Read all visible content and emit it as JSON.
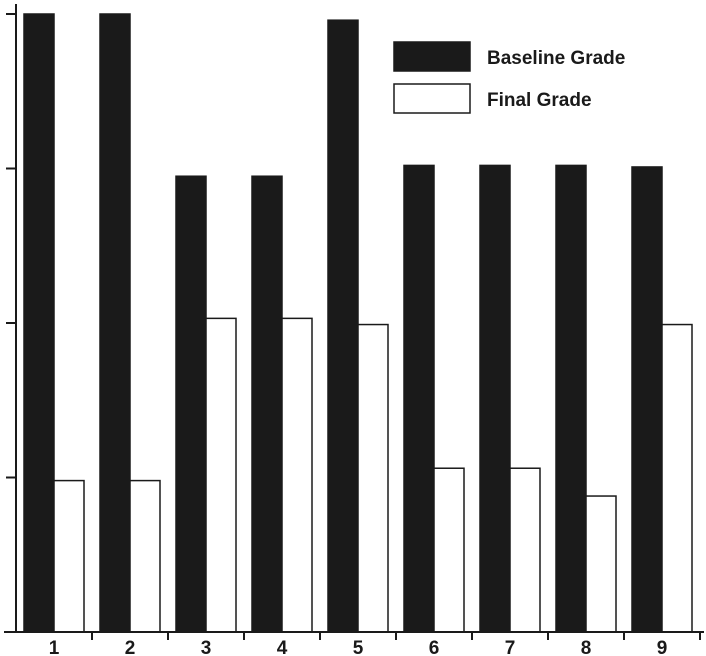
{
  "chart_data": {
    "type": "bar",
    "categories": [
      "1",
      "2",
      "3",
      "4",
      "5",
      "6",
      "7",
      "8",
      "9"
    ],
    "series": [
      {
        "name": "Baseline Grade",
        "values": [
          4.0,
          4.0,
          2.95,
          2.95,
          3.96,
          3.02,
          3.02,
          3.02,
          3.01
        ],
        "color": "#1a1a1a"
      },
      {
        "name": "Final Grade",
        "values": [
          0.98,
          0.98,
          2.03,
          2.03,
          1.99,
          1.06,
          1.06,
          0.88,
          1.99
        ],
        "color": "#ffffff"
      }
    ],
    "title": "",
    "xlabel": "",
    "ylabel": "",
    "ylim": [
      0,
      4.1
    ],
    "y_ticks": [
      1,
      2,
      3,
      4
    ],
    "y_tick_labels_shown": false,
    "grid": false,
    "legend_position": "top-right"
  }
}
